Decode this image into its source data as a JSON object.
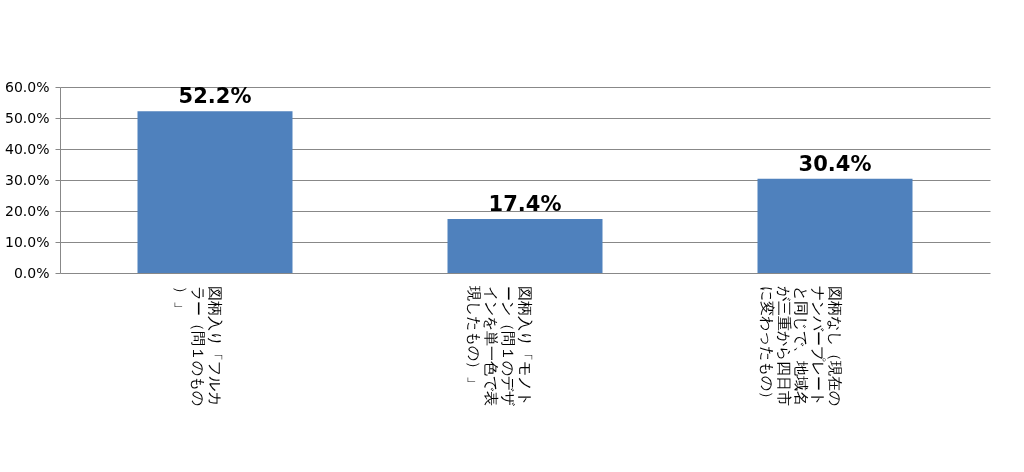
{
  "chart_data": {
    "type": "bar",
    "categories": [
      "図柄入り「フルカラー（問１のもの）」",
      "図柄入り「モノトーン（問１のデザインを単一色で表現したもの）」",
      "図柄なし（現在のナンバープレートと同じで、地域名が三重から四日市に変わったもの）"
    ],
    "values": [
      52.2,
      17.4,
      30.4
    ],
    "value_labels": [
      "52.2%",
      "17.4%",
      "30.4%"
    ],
    "color": "#4f81bd",
    "ylim": [
      0,
      60
    ],
    "yticks": [
      {
        "value": 0,
        "label": "0.0%"
      },
      {
        "value": 10,
        "label": "10.0%"
      },
      {
        "value": 20,
        "label": "20.0%"
      },
      {
        "value": 30,
        "label": "30.0%"
      },
      {
        "value": 40,
        "label": "40.0%"
      },
      {
        "value": 50,
        "label": "50.0%"
      },
      {
        "value": 60,
        "label": "60.0%"
      }
    ],
    "grid": "y"
  }
}
